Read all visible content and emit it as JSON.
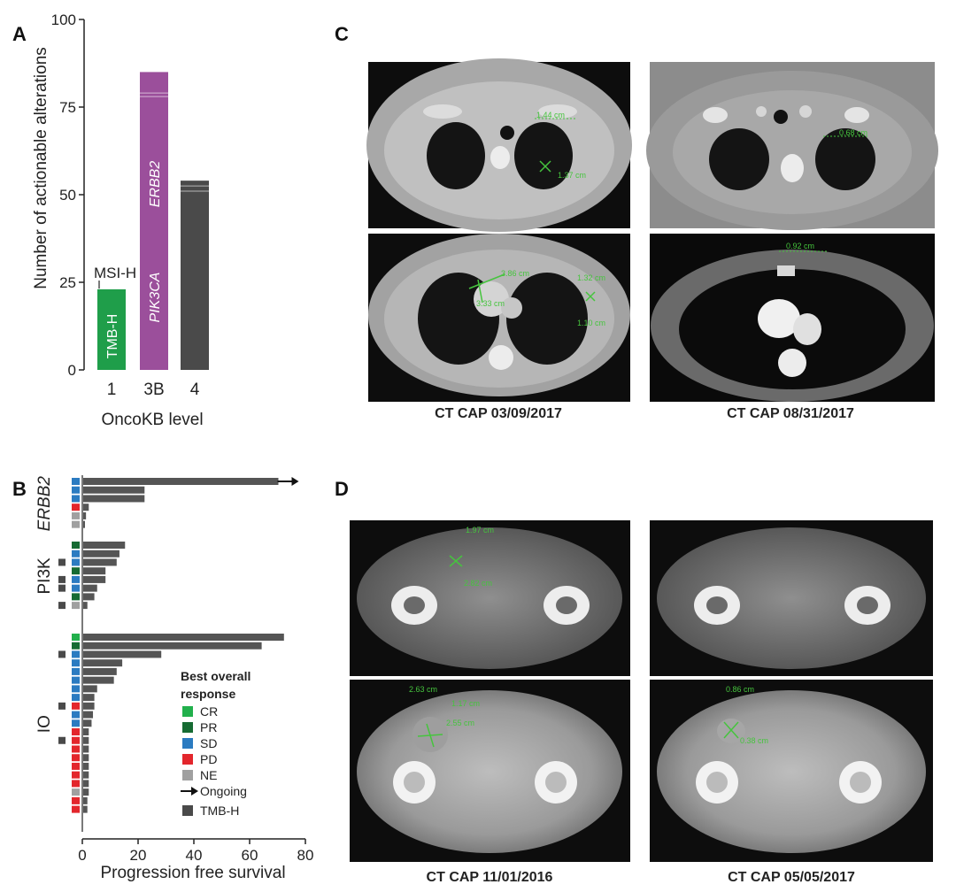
{
  "panel_letters": {
    "a": "A",
    "b": "B",
    "c": "C",
    "d": "D"
  },
  "colors": {
    "tmb": "#1f9e4a",
    "pik3ca": "#9b4f9b",
    "level4": "#4a4a4a",
    "bar": "#555555",
    "CR": "#22b04c",
    "PR": "#166b33",
    "SD": "#2b7bc1",
    "PD": "#e3262c",
    "NE": "#a0a0a0"
  },
  "chart_data": [
    {
      "type": "bar",
      "ylabel": "Number of actionable alterations",
      "xlabel": "OncoKB level",
      "ylim": [
        0,
        100
      ],
      "yticks": [
        0,
        25,
        50,
        75,
        100
      ],
      "categories": [
        "1",
        "3B",
        "4"
      ],
      "values": [
        23,
        85,
        54
      ],
      "bar_labels": [
        "TMB-H",
        "PIK3CA",
        "ERBB2"
      ],
      "annotations": [
        "MSI-H"
      ]
    },
    {
      "type": "bar",
      "orientation": "horizontal",
      "xlabel": "Progression free survival",
      "xlim": [
        0,
        80
      ],
      "xticks": [
        0,
        20,
        40,
        60,
        80
      ],
      "legend_title": "Best overall response",
      "legend": [
        {
          "label": "CR",
          "key": "CR"
        },
        {
          "label": "PR",
          "key": "PR"
        },
        {
          "label": "SD",
          "key": "SD"
        },
        {
          "label": "PD",
          "key": "PD"
        },
        {
          "label": "NE",
          "key": "NE"
        },
        {
          "label": "Ongoing",
          "key": "arrow"
        },
        {
          "label": "TMB-H",
          "key": "tmb"
        }
      ],
      "groups": [
        {
          "name": "ERBB2",
          "rows": [
            {
              "pfs": 70,
              "response": "SD",
              "tmb": false,
              "ongoing": true
            },
            {
              "pfs": 22,
              "response": "SD",
              "tmb": false,
              "ongoing": false
            },
            {
              "pfs": 22,
              "response": "SD",
              "tmb": false,
              "ongoing": false
            },
            {
              "pfs": 2,
              "response": "PD",
              "tmb": false,
              "ongoing": false
            },
            {
              "pfs": 1,
              "response": "NE",
              "tmb": false,
              "ongoing": false
            },
            {
              "pfs": 0.5,
              "response": "NE",
              "tmb": false,
              "ongoing": false
            }
          ]
        },
        {
          "name": "PI3K",
          "rows": [
            {
              "pfs": 15,
              "response": "PR",
              "tmb": false,
              "ongoing": false
            },
            {
              "pfs": 13,
              "response": "SD",
              "tmb": false,
              "ongoing": false
            },
            {
              "pfs": 12,
              "response": "SD",
              "tmb": true,
              "ongoing": false
            },
            {
              "pfs": 8,
              "response": "PR",
              "tmb": false,
              "ongoing": false
            },
            {
              "pfs": 8,
              "response": "SD",
              "tmb": true,
              "ongoing": false
            },
            {
              "pfs": 5,
              "response": "SD",
              "tmb": true,
              "ongoing": false
            },
            {
              "pfs": 4,
              "response": "PR",
              "tmb": false,
              "ongoing": false
            },
            {
              "pfs": 1.5,
              "response": "NE",
              "tmb": true,
              "ongoing": false
            }
          ]
        },
        {
          "name": "IO",
          "rows": [
            {
              "pfs": 72,
              "response": "CR",
              "tmb": false,
              "ongoing": false
            },
            {
              "pfs": 64,
              "response": "PR",
              "tmb": false,
              "ongoing": false
            },
            {
              "pfs": 28,
              "response": "SD",
              "tmb": true,
              "ongoing": false
            },
            {
              "pfs": 14,
              "response": "SD",
              "tmb": false,
              "ongoing": false
            },
            {
              "pfs": 12,
              "response": "SD",
              "tmb": false,
              "ongoing": false
            },
            {
              "pfs": 11,
              "response": "SD",
              "tmb": false,
              "ongoing": false
            },
            {
              "pfs": 5,
              "response": "SD",
              "tmb": false,
              "ongoing": false
            },
            {
              "pfs": 4,
              "response": "SD",
              "tmb": false,
              "ongoing": false
            },
            {
              "pfs": 4,
              "response": "PD",
              "tmb": true,
              "ongoing": false
            },
            {
              "pfs": 3.5,
              "response": "SD",
              "tmb": false,
              "ongoing": false
            },
            {
              "pfs": 3,
              "response": "SD",
              "tmb": false,
              "ongoing": false
            },
            {
              "pfs": 2,
              "response": "PD",
              "tmb": false,
              "ongoing": false
            },
            {
              "pfs": 2,
              "response": "PD",
              "tmb": true,
              "ongoing": false
            },
            {
              "pfs": 2,
              "response": "PD",
              "tmb": false,
              "ongoing": false
            },
            {
              "pfs": 2,
              "response": "PD",
              "tmb": false,
              "ongoing": false
            },
            {
              "pfs": 2,
              "response": "PD",
              "tmb": false,
              "ongoing": false
            },
            {
              "pfs": 2,
              "response": "PD",
              "tmb": false,
              "ongoing": false
            },
            {
              "pfs": 2,
              "response": "PD",
              "tmb": false,
              "ongoing": false
            },
            {
              "pfs": 2,
              "response": "NE",
              "tmb": false,
              "ongoing": false
            },
            {
              "pfs": 1.5,
              "response": "PD",
              "tmb": false,
              "ongoing": false
            },
            {
              "pfs": 1.5,
              "response": "PD",
              "tmb": false,
              "ongoing": false
            }
          ]
        }
      ]
    }
  ],
  "panel_c": {
    "captions": [
      "CT CAP 03/09/2017",
      "CT CAP 08/31/2017"
    ],
    "measurements": [
      "1.44 cm",
      "1.37 cm",
      "0.68 cm",
      "3.86 cm",
      "3.33 cm",
      "1.32 cm",
      "1.10 cm",
      "0.92 cm"
    ]
  },
  "panel_d": {
    "captions": [
      "CT CAP 11/01/2016",
      "CT CAP 05/05/2017"
    ],
    "measurements": [
      "1.97 cm",
      "2.82 cm",
      "2.63 cm",
      "1.17 cm",
      "2.55 cm",
      "0.86 cm",
      "0.38 cm",
      "0.38 cm"
    ]
  }
}
